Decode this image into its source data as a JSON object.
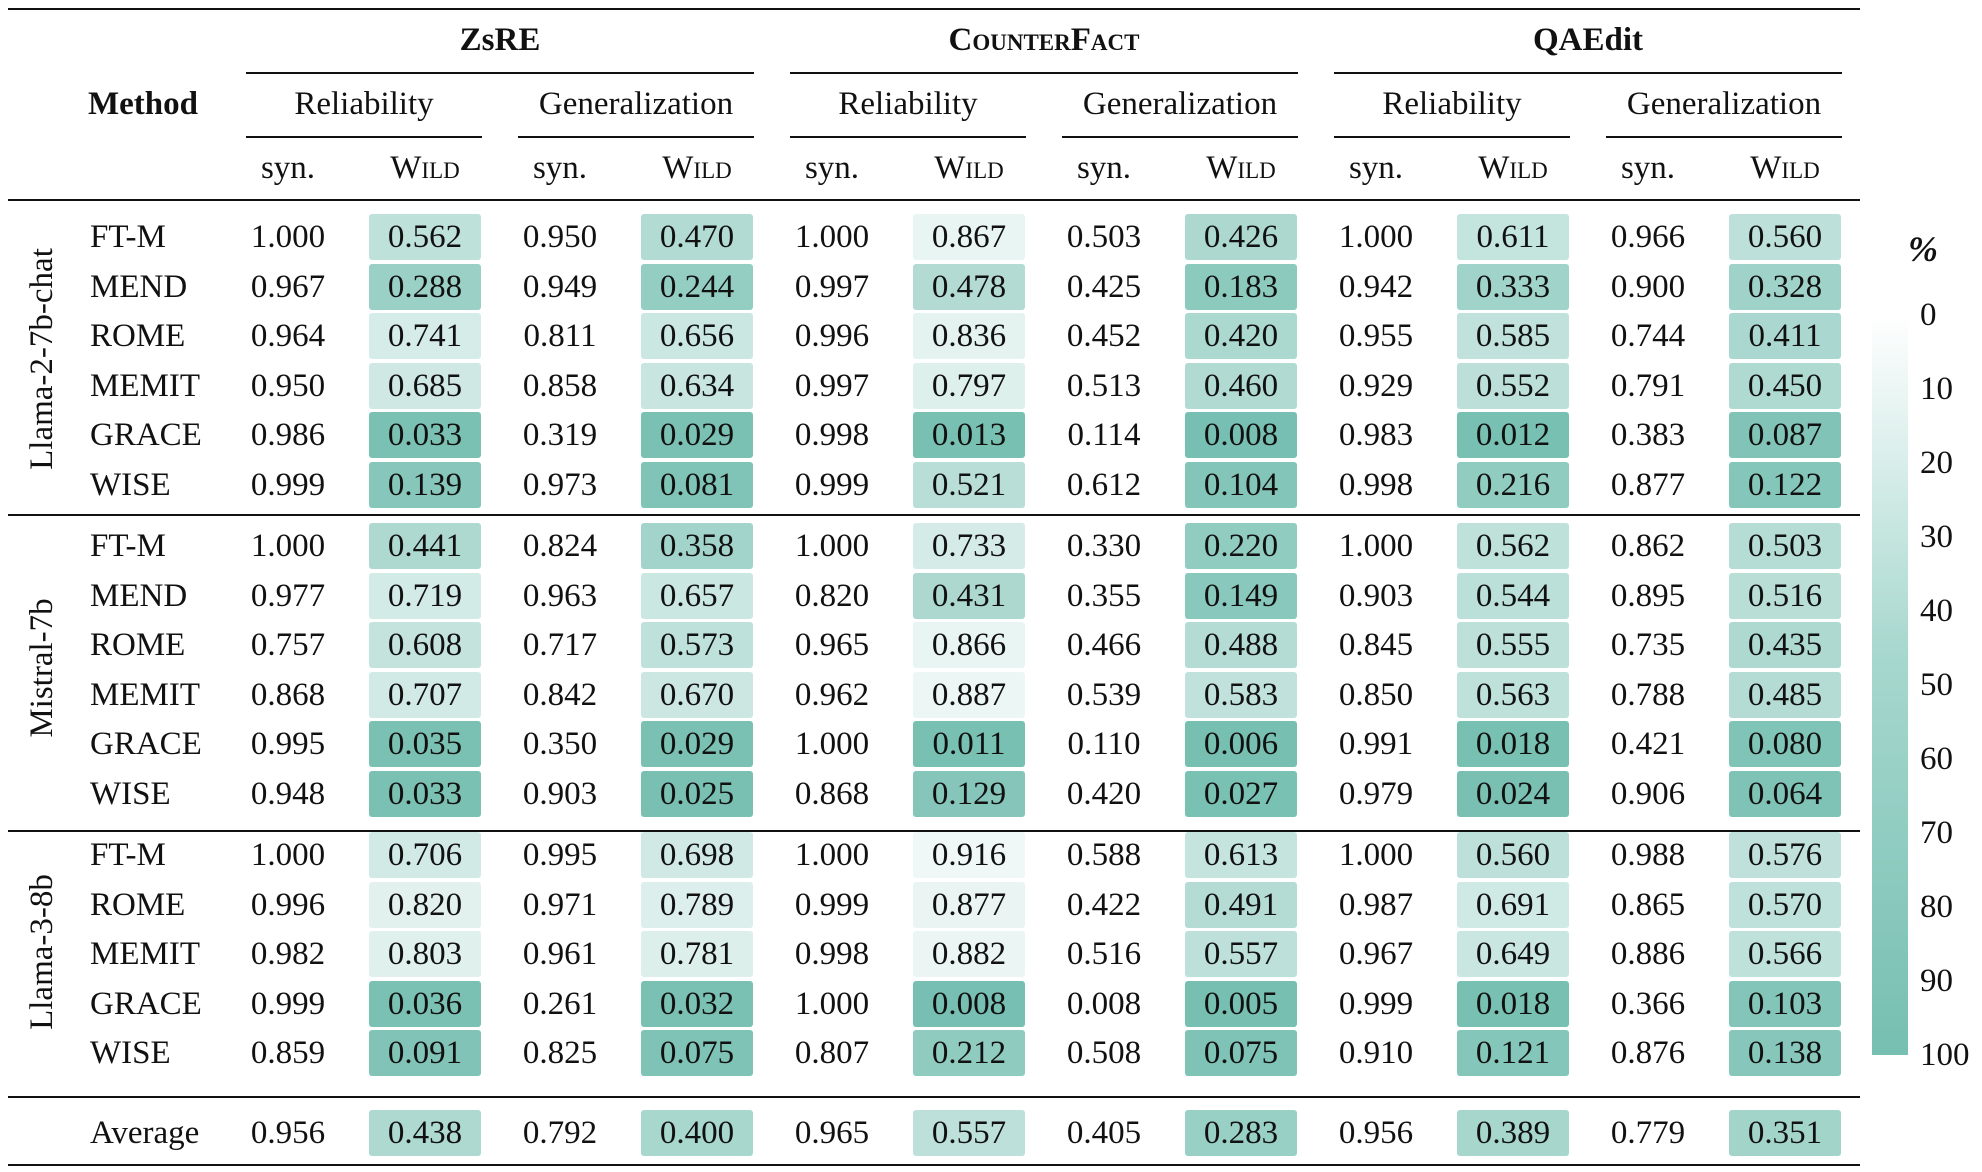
{
  "header": {
    "method_label": "Method",
    "datasets": [
      "ZsRE",
      "CounterFact",
      "QAEdit"
    ],
    "metrics": [
      "Reliability",
      "Generalization"
    ],
    "subcols": [
      "syn.",
      "Wild"
    ]
  },
  "colorbar": {
    "title": "%",
    "ticks": [
      "0",
      "10",
      "20",
      "30",
      "40",
      "50",
      "60",
      "70",
      "80",
      "90",
      "100"
    ],
    "low_color": "#ffffff",
    "high_color": "#76bfb1"
  },
  "groups": [
    {
      "model": "Llama-2-7b-chat",
      "rows": [
        {
          "method": "FT-M",
          "values": [
            "1.000",
            "0.562",
            "0.950",
            "0.470",
            "1.000",
            "0.867",
            "0.503",
            "0.426",
            "1.000",
            "0.611",
            "0.966",
            "0.560"
          ]
        },
        {
          "method": "MEND",
          "values": [
            "0.967",
            "0.288",
            "0.949",
            "0.244",
            "0.997",
            "0.478",
            "0.425",
            "0.183",
            "0.942",
            "0.333",
            "0.900",
            "0.328"
          ]
        },
        {
          "method": "ROME",
          "values": [
            "0.964",
            "0.741",
            "0.811",
            "0.656",
            "0.996",
            "0.836",
            "0.452",
            "0.420",
            "0.955",
            "0.585",
            "0.744",
            "0.411"
          ]
        },
        {
          "method": "MEMIT",
          "values": [
            "0.950",
            "0.685",
            "0.858",
            "0.634",
            "0.997",
            "0.797",
            "0.513",
            "0.460",
            "0.929",
            "0.552",
            "0.791",
            "0.450"
          ]
        },
        {
          "method": "GRACE",
          "values": [
            "0.986",
            "0.033",
            "0.319",
            "0.029",
            "0.998",
            "0.013",
            "0.114",
            "0.008",
            "0.983",
            "0.012",
            "0.383",
            "0.087"
          ]
        },
        {
          "method": "WISE",
          "values": [
            "0.999",
            "0.139",
            "0.973",
            "0.081",
            "0.999",
            "0.521",
            "0.612",
            "0.104",
            "0.998",
            "0.216",
            "0.877",
            "0.122"
          ]
        }
      ]
    },
    {
      "model": "Mistral-7b",
      "rows": [
        {
          "method": "FT-M",
          "values": [
            "1.000",
            "0.441",
            "0.824",
            "0.358",
            "1.000",
            "0.733",
            "0.330",
            "0.220",
            "1.000",
            "0.562",
            "0.862",
            "0.503"
          ]
        },
        {
          "method": "MEND",
          "values": [
            "0.977",
            "0.719",
            "0.963",
            "0.657",
            "0.820",
            "0.431",
            "0.355",
            "0.149",
            "0.903",
            "0.544",
            "0.895",
            "0.516"
          ]
        },
        {
          "method": "ROME",
          "values": [
            "0.757",
            "0.608",
            "0.717",
            "0.573",
            "0.965",
            "0.866",
            "0.466",
            "0.488",
            "0.845",
            "0.555",
            "0.735",
            "0.435"
          ]
        },
        {
          "method": "MEMIT",
          "values": [
            "0.868",
            "0.707",
            "0.842",
            "0.670",
            "0.962",
            "0.887",
            "0.539",
            "0.583",
            "0.850",
            "0.563",
            "0.788",
            "0.485"
          ]
        },
        {
          "method": "GRACE",
          "values": [
            "0.995",
            "0.035",
            "0.350",
            "0.029",
            "1.000",
            "0.011",
            "0.110",
            "0.006",
            "0.991",
            "0.018",
            "0.421",
            "0.080"
          ]
        },
        {
          "method": "WISE",
          "values": [
            "0.948",
            "0.033",
            "0.903",
            "0.025",
            "0.868",
            "0.129",
            "0.420",
            "0.027",
            "0.979",
            "0.024",
            "0.906",
            "0.064"
          ]
        }
      ]
    },
    {
      "model": "Llama-3-8b",
      "rows": [
        {
          "method": "FT-M",
          "values": [
            "1.000",
            "0.706",
            "0.995",
            "0.698",
            "1.000",
            "0.916",
            "0.588",
            "0.613",
            "1.000",
            "0.560",
            "0.988",
            "0.576"
          ]
        },
        {
          "method": "ROME",
          "values": [
            "0.996",
            "0.820",
            "0.971",
            "0.789",
            "0.999",
            "0.877",
            "0.422",
            "0.491",
            "0.987",
            "0.691",
            "0.865",
            "0.570"
          ]
        },
        {
          "method": "MEMIT",
          "values": [
            "0.982",
            "0.803",
            "0.961",
            "0.781",
            "0.998",
            "0.882",
            "0.516",
            "0.557",
            "0.967",
            "0.649",
            "0.886",
            "0.566"
          ]
        },
        {
          "method": "GRACE",
          "values": [
            "0.999",
            "0.036",
            "0.261",
            "0.032",
            "1.000",
            "0.008",
            "0.008",
            "0.005",
            "0.999",
            "0.018",
            "0.366",
            "0.103"
          ]
        },
        {
          "method": "WISE",
          "values": [
            "0.859",
            "0.091",
            "0.825",
            "0.075",
            "0.807",
            "0.212",
            "0.508",
            "0.075",
            "0.910",
            "0.121",
            "0.876",
            "0.138"
          ]
        }
      ]
    }
  ],
  "average": {
    "method": "Average",
    "values": [
      "0.956",
      "0.438",
      "0.792",
      "0.400",
      "0.965",
      "0.557",
      "0.405",
      "0.283",
      "0.956",
      "0.389",
      "0.779",
      "0.351"
    ]
  }
}
